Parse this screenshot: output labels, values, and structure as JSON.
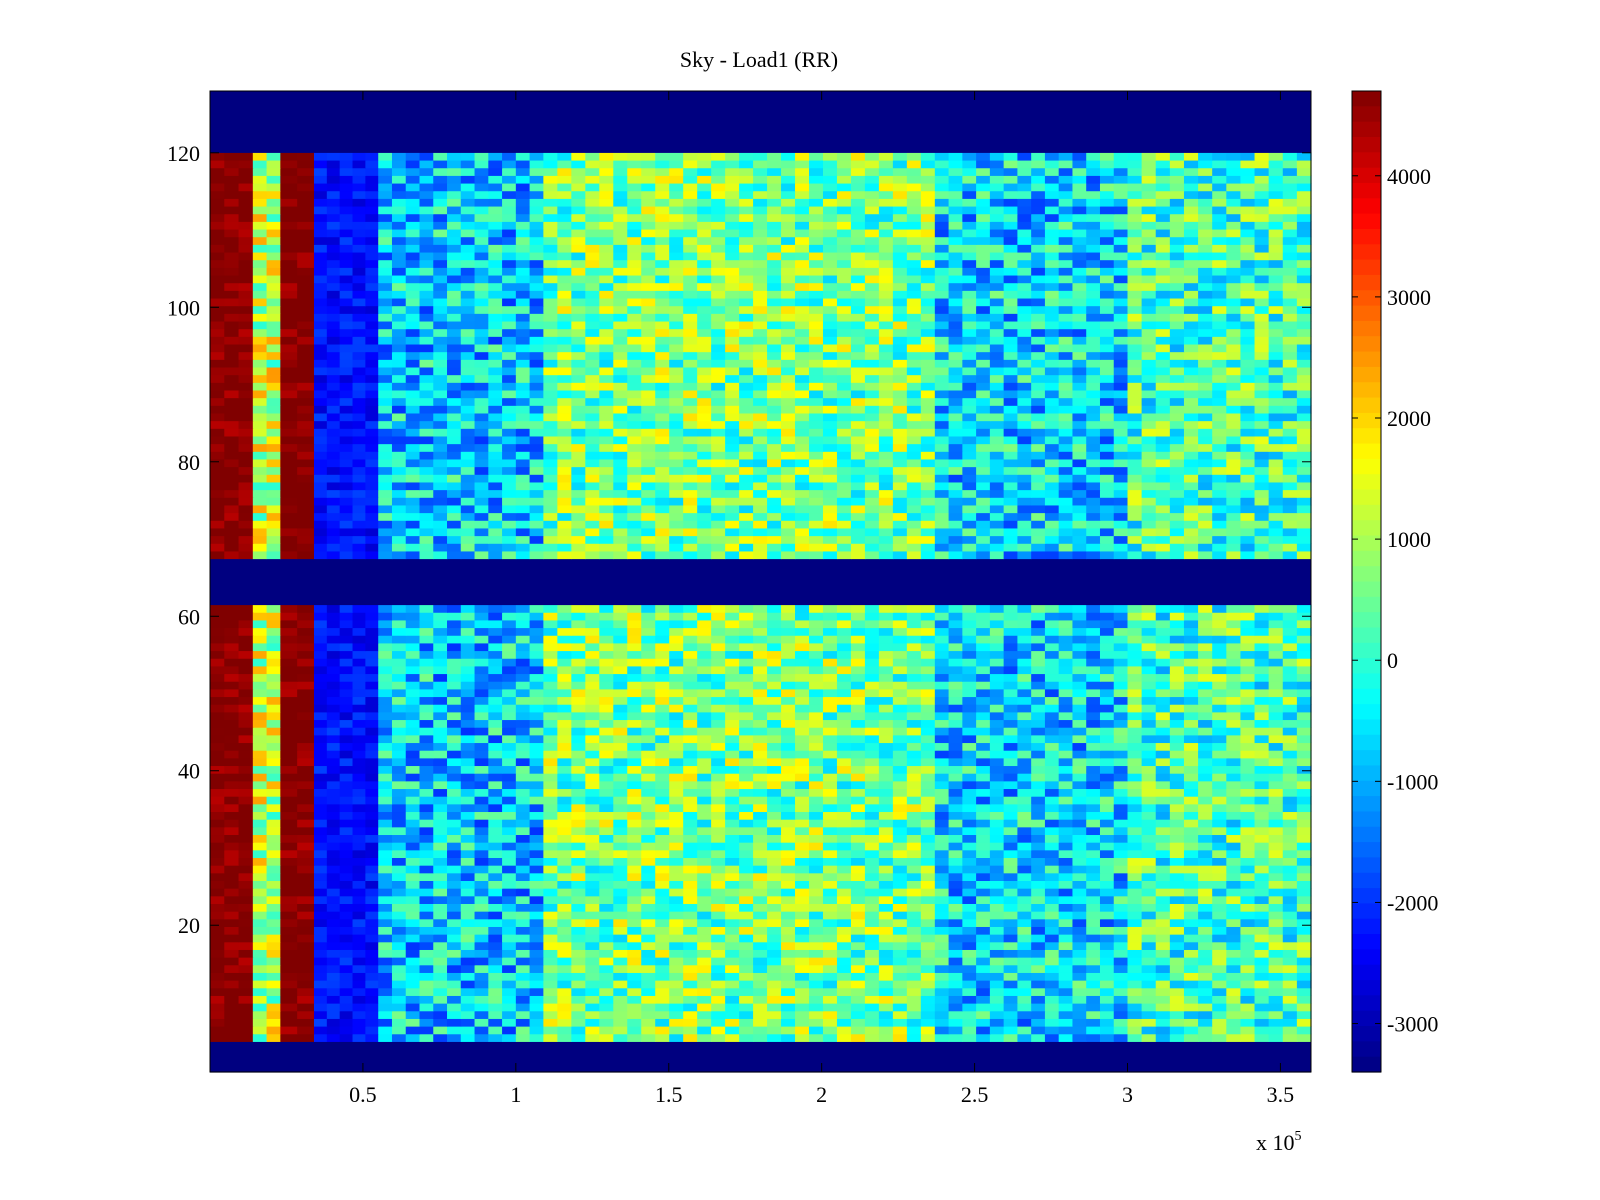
{
  "chart_data": {
    "type": "heatmap",
    "title": "Sky - Load1 (RR)",
    "xlabel": "",
    "ylabel": "",
    "x_exponent_label": "x 10",
    "x_exponent_power": "5",
    "xlim": [
      0,
      360000
    ],
    "ylim": [
      1,
      128
    ],
    "x_ticks": [
      50000,
      100000,
      150000,
      200000,
      250000,
      300000,
      350000
    ],
    "x_tick_labels": [
      "0.5",
      "1",
      "1.5",
      "2",
      "2.5",
      "3",
      "3.5"
    ],
    "y_ticks": [
      20,
      40,
      60,
      80,
      100,
      120
    ],
    "y_tick_labels": [
      "20",
      "40",
      "60",
      "80",
      "100",
      "120"
    ],
    "colormap": "jet",
    "clim": [
      -3400,
      4700
    ],
    "colorbar_ticks": [
      4000,
      3000,
      2000,
      1000,
      0,
      -1000,
      -2000,
      -3000
    ],
    "colorbar_tick_labels": [
      "4000",
      "3000",
      "2000",
      "1000",
      "0",
      "-1000",
      "-2000",
      "-3000"
    ],
    "masked_row_bands": [
      [
        1,
        4
      ],
      [
        67,
        62
      ],
      [
        128,
        121
      ]
    ],
    "masked_row_value": -3400,
    "column_regions": [
      {
        "x": [
          0,
          14000
        ],
        "level": 4700
      },
      {
        "x": [
          14000,
          23000
        ],
        "level": 1200
      },
      {
        "x": [
          23000,
          34000
        ],
        "level": 4700
      },
      {
        "x": [
          34000,
          55000
        ],
        "level": -2300
      },
      {
        "x": [
          55000,
          109000
        ],
        "level": -700
      },
      {
        "x": [
          109000,
          237000
        ],
        "level": 600
      },
      {
        "x": [
          237000,
          300000
        ],
        "level": -600
      },
      {
        "x": [
          300000,
          360000
        ],
        "level": 200
      }
    ],
    "grid": false,
    "legend": "none"
  }
}
